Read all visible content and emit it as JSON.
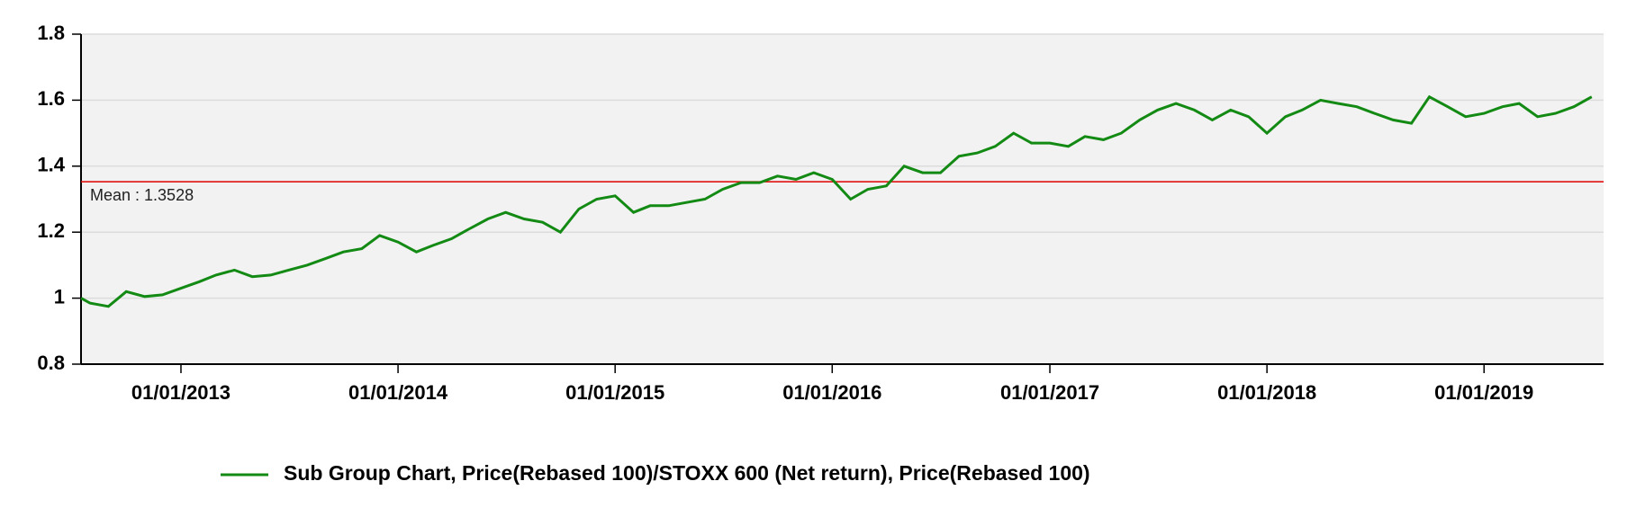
{
  "chart_data": {
    "type": "line",
    "x": [
      "17/07/2012",
      "01/08/2012",
      "01/09/2012",
      "01/10/2012",
      "01/11/2012",
      "01/12/2012",
      "01/01/2013",
      "01/02/2013",
      "01/03/2013",
      "01/04/2013",
      "01/05/2013",
      "01/06/2013",
      "01/07/2013",
      "01/08/2013",
      "01/09/2013",
      "01/10/2013",
      "01/11/2013",
      "01/12/2013",
      "01/01/2014",
      "01/02/2014",
      "01/03/2014",
      "01/04/2014",
      "01/05/2014",
      "01/06/2014",
      "01/07/2014",
      "01/08/2014",
      "01/09/2014",
      "01/10/2014",
      "01/11/2014",
      "01/12/2014",
      "01/01/2015",
      "01/02/2015",
      "01/03/2015",
      "01/04/2015",
      "01/05/2015",
      "01/06/2015",
      "01/07/2015",
      "01/08/2015",
      "01/09/2015",
      "01/10/2015",
      "01/11/2015",
      "01/12/2015",
      "01/01/2016",
      "01/02/2016",
      "01/03/2016",
      "01/04/2016",
      "01/05/2016",
      "01/06/2016",
      "01/07/2016",
      "01/08/2016",
      "01/09/2016",
      "01/10/2016",
      "01/11/2016",
      "01/12/2016",
      "01/01/2017",
      "01/02/2017",
      "01/03/2017",
      "01/04/2017",
      "01/05/2017",
      "01/06/2017",
      "01/07/2017",
      "01/08/2017",
      "01/09/2017",
      "01/10/2017",
      "01/11/2017",
      "01/12/2017",
      "01/01/2018",
      "01/02/2018",
      "01/03/2018",
      "01/04/2018",
      "01/05/2018",
      "01/06/2018",
      "01/07/2018",
      "01/08/2018",
      "01/09/2018",
      "01/10/2018",
      "01/11/2018",
      "01/12/2018",
      "01/01/2019",
      "01/02/2019",
      "01/03/2019",
      "01/04/2019",
      "01/05/2019",
      "01/06/2019",
      "01/07/2019"
    ],
    "series": [
      {
        "name": "Sub Group Chart, Price(Rebased 100)/STOXX 600 (Net return), Price(Rebased 100)",
        "color": "#138a13",
        "values": [
          1.0,
          0.985,
          0.975,
          1.02,
          1.005,
          1.01,
          1.03,
          1.05,
          1.07,
          1.085,
          1.065,
          1.07,
          1.085,
          1.1,
          1.12,
          1.14,
          1.15,
          1.19,
          1.17,
          1.14,
          1.16,
          1.18,
          1.21,
          1.24,
          1.26,
          1.24,
          1.23,
          1.2,
          1.27,
          1.3,
          1.31,
          1.26,
          1.28,
          1.28,
          1.29,
          1.3,
          1.33,
          1.35,
          1.35,
          1.37,
          1.36,
          1.38,
          1.36,
          1.3,
          1.33,
          1.34,
          1.4,
          1.38,
          1.38,
          1.43,
          1.44,
          1.46,
          1.5,
          1.47,
          1.47,
          1.46,
          1.49,
          1.48,
          1.5,
          1.54,
          1.57,
          1.59,
          1.57,
          1.54,
          1.57,
          1.55,
          1.5,
          1.55,
          1.57,
          1.6,
          1.59,
          1.58,
          1.56,
          1.54,
          1.53,
          1.61,
          1.58,
          1.55,
          1.56,
          1.58,
          1.59,
          1.55,
          1.56,
          1.58,
          1.61
        ]
      }
    ],
    "xlim": [
      "17/07/2012",
      "21/07/2019"
    ],
    "xticks": [
      "01/01/2013",
      "01/01/2014",
      "01/01/2015",
      "01/01/2016",
      "01/01/2017",
      "01/01/2018",
      "01/01/2019"
    ],
    "ylim": [
      0.8,
      1.8
    ],
    "yticks": [
      0.8,
      1,
      1.2,
      1.4,
      1.6,
      1.8
    ],
    "grid": true,
    "mean": {
      "value": 1.3528,
      "label": "Mean : 1.3528",
      "color": "#e00000"
    },
    "legend": "bottom"
  }
}
